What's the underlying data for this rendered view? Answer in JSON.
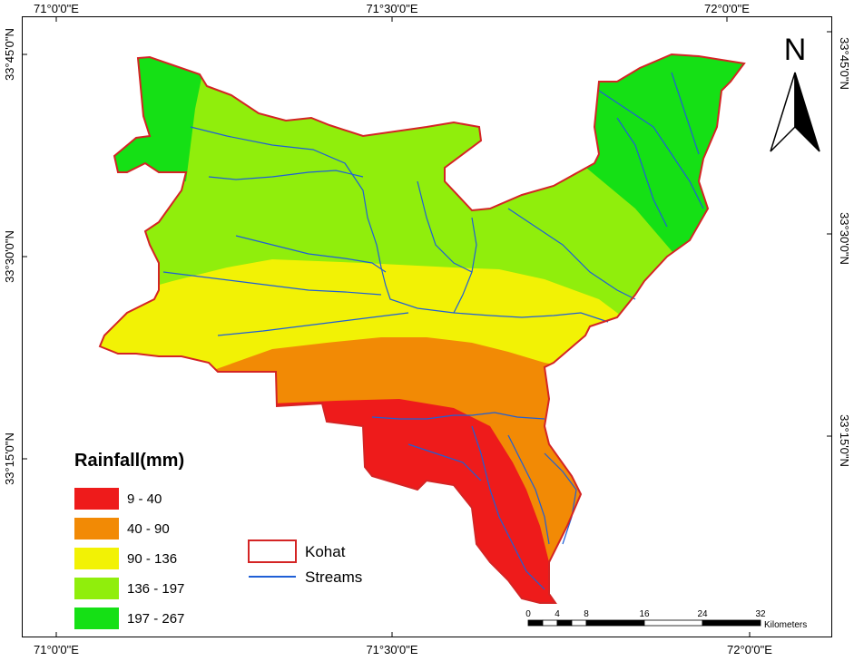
{
  "grid": {
    "top_labels": [
      "71°0'0\"E",
      "71°30'0\"E",
      "72°0'0\"E"
    ],
    "bottom_labels": [
      "71°0'0\"E",
      "71°30'0\"E",
      "72°0'0\"E"
    ],
    "left_labels": [
      "33°45'0\"N",
      "33°30'0\"N",
      "33°15'0\"N"
    ],
    "right_labels": [
      "33°45'0\"N",
      "33°30'0\"N",
      "33°15'0\"N"
    ]
  },
  "legend": {
    "title": "Rainfall(mm)",
    "classes": [
      {
        "label": "9 - 40",
        "color": "#ee1b1b"
      },
      {
        "label": "40 - 90",
        "color": "#f28a05"
      },
      {
        "label": "90 - 136",
        "color": "#f2f205"
      },
      {
        "label": "136 - 197",
        "color": "#90ee0c"
      },
      {
        "label": "197 - 267",
        "color": "#15e015"
      }
    ]
  },
  "inset_legend": {
    "boundary_label": "Kohat",
    "boundary_color": "#d42424",
    "streams_label": "Streams",
    "streams_color": "#1f5fd6"
  },
  "north_arrow": {
    "label": "N"
  },
  "scale_bar": {
    "ticks": [
      "0",
      "4",
      "8",
      "16",
      "24",
      "32"
    ],
    "unit": "Kilometers"
  }
}
